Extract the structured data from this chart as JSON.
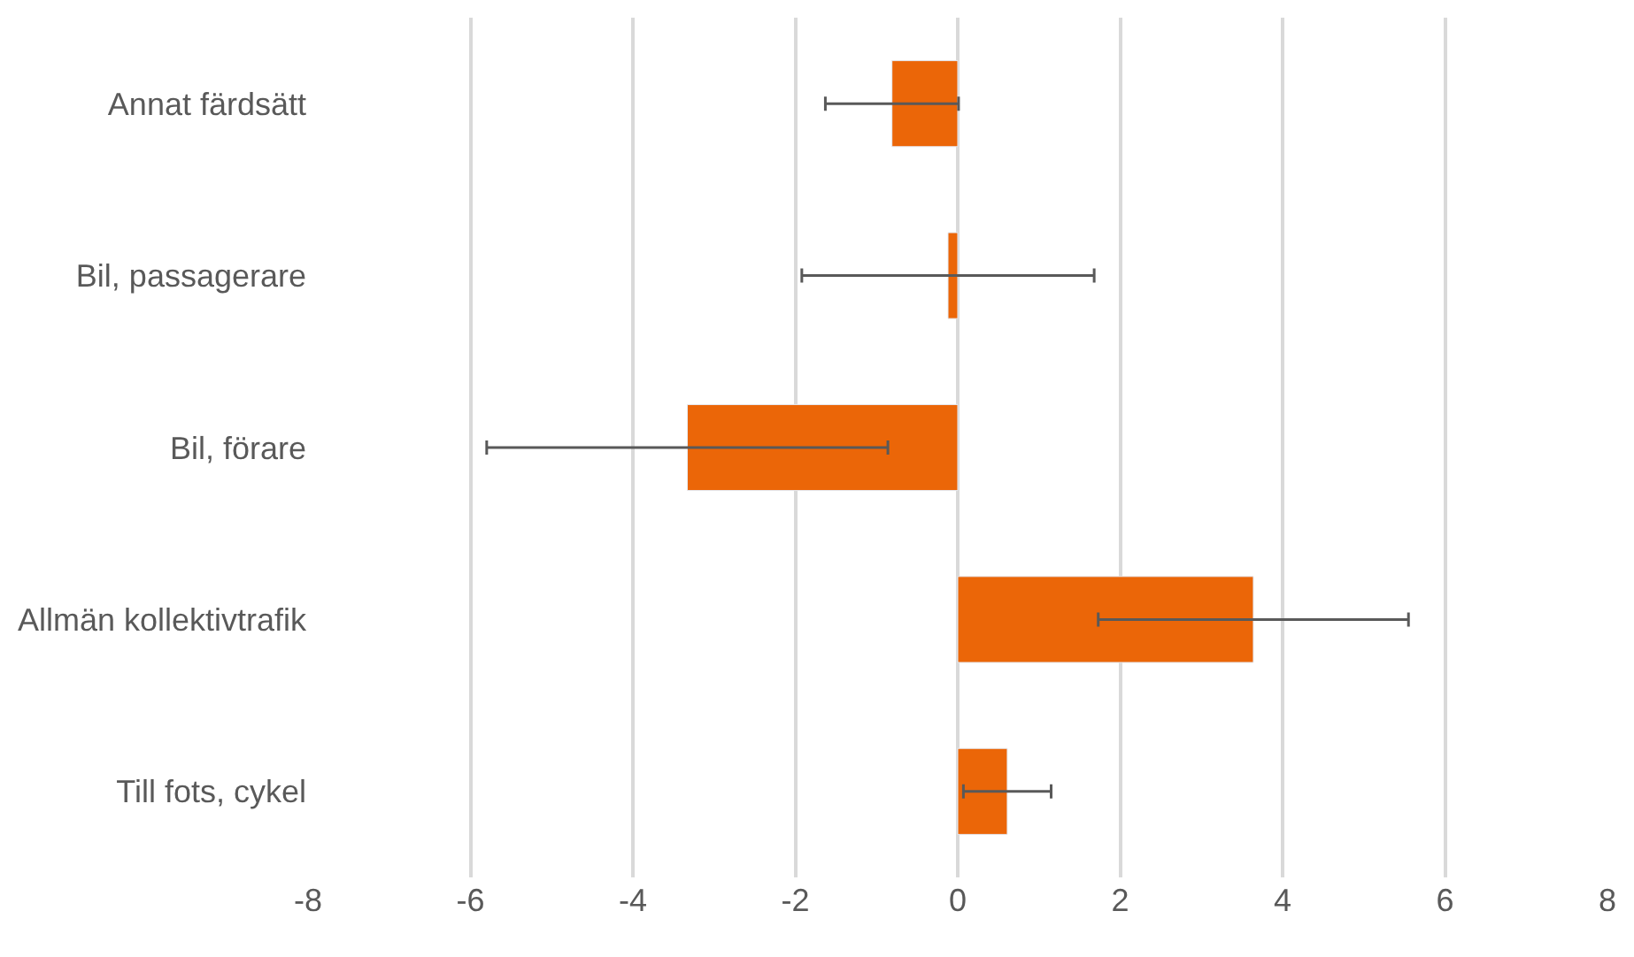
{
  "chart_data": {
    "type": "bar",
    "orientation": "horizontal",
    "categories": [
      "Annat färdsätt",
      "Bil, passagerare",
      "Bil, förare",
      "Allmän kollektivtrafik",
      "Till fots, cykel"
    ],
    "values": [
      -0.81,
      -0.12,
      -3.33,
      3.64,
      0.61
    ],
    "errors": [
      0.82,
      1.8,
      2.47,
      1.91,
      0.54
    ],
    "color": "#eb6608",
    "xlim": [
      -8,
      8
    ],
    "xticks": [
      -8,
      -6,
      -4,
      -2,
      0,
      2,
      4,
      6,
      8
    ],
    "grid": "x",
    "legend": false
  }
}
